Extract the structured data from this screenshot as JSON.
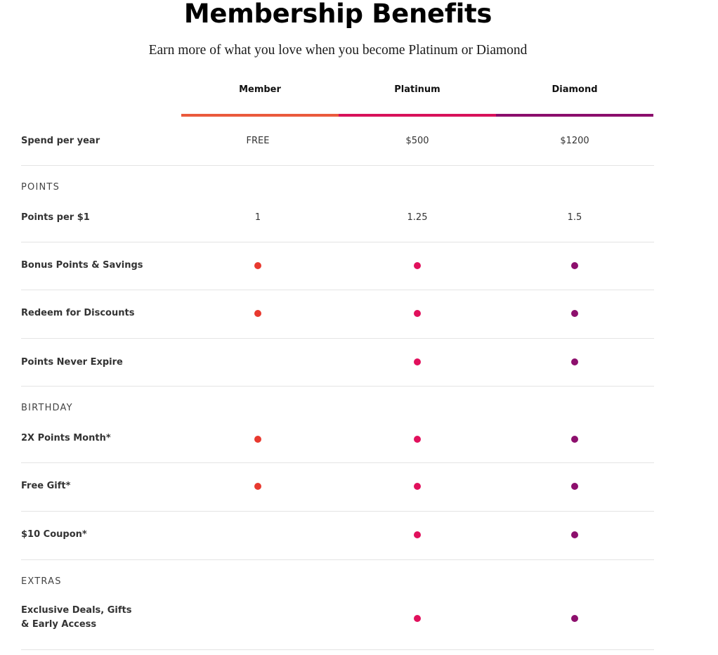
{
  "page": {
    "title": "Membership Benefits",
    "subtitle": "Earn more of what you love when you become Platinum or Diamond"
  },
  "tiers": [
    {
      "name": "Member",
      "color": "#ea5a3c",
      "dot_color": "#e8392f"
    },
    {
      "name": "Platinum",
      "color": "#d8115a",
      "dot_color": "#e1105c"
    },
    {
      "name": "Diamond",
      "color": "#8b0d6c",
      "dot_color": "#8d0f6d"
    }
  ],
  "spend_row": {
    "label": "Spend per year",
    "values": [
      "FREE",
      "$500",
      "$1200"
    ]
  },
  "sections": {
    "points": {
      "title": "POINTS",
      "rows": [
        {
          "label": "Points per $1",
          "values": [
            "1",
            "1.25",
            "1.5"
          ]
        },
        {
          "label": "Bonus Points & Savings",
          "included": [
            true,
            true,
            true
          ]
        },
        {
          "label": "Redeem for Discounts",
          "included": [
            true,
            true,
            true
          ]
        },
        {
          "label": "Points Never Expire",
          "included": [
            false,
            true,
            true
          ]
        }
      ]
    },
    "birthday": {
      "title": "BIRTHDAY",
      "rows": [
        {
          "label": "2X Points Month*",
          "included": [
            true,
            true,
            true
          ]
        },
        {
          "label": "Free Gift*",
          "included": [
            true,
            true,
            true
          ]
        },
        {
          "label": "$10 Coupon*",
          "included": [
            false,
            true,
            true
          ]
        }
      ]
    },
    "extras": {
      "title": "EXTRAS",
      "rows": [
        {
          "label": "Exclusive Deals, Gifts & Early Access",
          "included": [
            false,
            true,
            true
          ]
        }
      ]
    }
  }
}
